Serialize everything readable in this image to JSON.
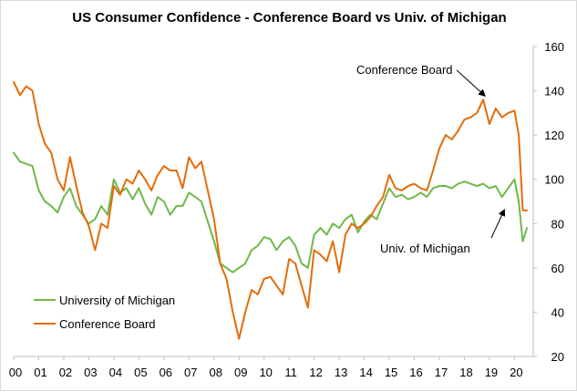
{
  "chart_data": {
    "type": "line",
    "title": "US Consumer Confidence - Conference Board vs Univ. of Michigan",
    "xlabel": "",
    "ylabel": "",
    "ylim": [
      20,
      160
    ],
    "yticks": [
      20,
      40,
      60,
      80,
      100,
      120,
      140,
      160
    ],
    "xlim": [
      2000,
      2020.75
    ],
    "x_tick_labels": [
      "00",
      "01",
      "02",
      "03",
      "04",
      "05",
      "06",
      "07",
      "08",
      "09",
      "10",
      "11",
      "12",
      "13",
      "14",
      "15",
      "16",
      "17",
      "18",
      "19",
      "20"
    ],
    "grid": false,
    "y_axis_position": "right",
    "legend_position": "bottom-left",
    "legend": [
      "University of Michigan",
      "Conference Board"
    ],
    "annotations": [
      {
        "text": "Conference Board",
        "series": "Conference Board",
        "x": 2018.9,
        "y": 136
      },
      {
        "text": "Univ. of Michigan",
        "series": "University of Michigan",
        "x": 2019.6,
        "y": 88
      }
    ],
    "series": [
      {
        "name": "University of Michigan",
        "color": "#70b84a",
        "x": [
          2000.0,
          2000.25,
          2000.5,
          2000.75,
          2001.0,
          2001.25,
          2001.5,
          2001.75,
          2002.0,
          2002.25,
          2002.5,
          2002.75,
          2003.0,
          2003.25,
          2003.5,
          2003.75,
          2004.0,
          2004.25,
          2004.5,
          2004.75,
          2005.0,
          2005.25,
          2005.5,
          2005.75,
          2006.0,
          2006.25,
          2006.5,
          2006.75,
          2007.0,
          2007.25,
          2007.5,
          2007.75,
          2008.0,
          2008.25,
          2008.5,
          2008.75,
          2009.0,
          2009.25,
          2009.5,
          2009.75,
          2010.0,
          2010.25,
          2010.5,
          2010.75,
          2011.0,
          2011.25,
          2011.5,
          2011.75,
          2012.0,
          2012.25,
          2012.5,
          2012.75,
          2013.0,
          2013.25,
          2013.5,
          2013.75,
          2014.0,
          2014.25,
          2014.5,
          2014.75,
          2015.0,
          2015.25,
          2015.5,
          2015.75,
          2016.0,
          2016.25,
          2016.5,
          2016.75,
          2017.0,
          2017.25,
          2017.5,
          2017.75,
          2018.0,
          2018.25,
          2018.5,
          2018.75,
          2019.0,
          2019.25,
          2019.5,
          2019.75,
          2020.0,
          2020.17,
          2020.33,
          2020.5
        ],
        "values": [
          112,
          108,
          107,
          106,
          95,
          90,
          88,
          85,
          92,
          96,
          88,
          84,
          80,
          82,
          88,
          84,
          100,
          94,
          96,
          91,
          96,
          89,
          84,
          92,
          90,
          84,
          88,
          88,
          94,
          92,
          90,
          81,
          72,
          62,
          60,
          58,
          60,
          62,
          68,
          70,
          74,
          73,
          68,
          72,
          74,
          70,
          62,
          60,
          75,
          78,
          75,
          80,
          78,
          82,
          84,
          76,
          81,
          84,
          82,
          89,
          96,
          92,
          93,
          91,
          92,
          94,
          92,
          96,
          97,
          97,
          96,
          98,
          99,
          98,
          97,
          98,
          96,
          97,
          92,
          96,
          100,
          90,
          72,
          78
        ]
      },
      {
        "name": "Conference Board",
        "color": "#e46c0a",
        "x": [
          2000.0,
          2000.25,
          2000.5,
          2000.75,
          2001.0,
          2001.25,
          2001.5,
          2001.75,
          2002.0,
          2002.25,
          2002.5,
          2002.75,
          2003.0,
          2003.25,
          2003.5,
          2003.75,
          2004.0,
          2004.25,
          2004.5,
          2004.75,
          2005.0,
          2005.25,
          2005.5,
          2005.75,
          2006.0,
          2006.25,
          2006.5,
          2006.75,
          2007.0,
          2007.25,
          2007.5,
          2007.75,
          2008.0,
          2008.25,
          2008.5,
          2008.75,
          2009.0,
          2009.25,
          2009.5,
          2009.75,
          2010.0,
          2010.25,
          2010.5,
          2010.75,
          2011.0,
          2011.25,
          2011.5,
          2011.75,
          2012.0,
          2012.25,
          2012.5,
          2012.75,
          2013.0,
          2013.25,
          2013.5,
          2013.75,
          2014.0,
          2014.25,
          2014.5,
          2014.75,
          2015.0,
          2015.25,
          2015.5,
          2015.75,
          2016.0,
          2016.25,
          2016.5,
          2016.75,
          2017.0,
          2017.25,
          2017.5,
          2017.75,
          2018.0,
          2018.25,
          2018.5,
          2018.75,
          2019.0,
          2019.25,
          2019.5,
          2019.75,
          2020.0,
          2020.17,
          2020.33,
          2020.5
        ],
        "values": [
          144,
          138,
          142,
          140,
          125,
          116,
          112,
          100,
          95,
          110,
          97,
          85,
          79,
          68,
          80,
          78,
          97,
          93,
          100,
          98,
          104,
          100,
          95,
          102,
          106,
          104,
          104,
          96,
          110,
          105,
          108,
          95,
          82,
          62,
          55,
          40,
          28,
          40,
          50,
          48,
          55,
          56,
          52,
          48,
          64,
          62,
          52,
          42,
          68,
          66,
          63,
          72,
          58,
          75,
          80,
          78,
          80,
          83,
          88,
          92,
          102,
          96,
          95,
          97,
          98,
          96,
          95,
          104,
          114,
          120,
          118,
          122,
          127,
          128,
          130,
          136,
          125,
          132,
          128,
          130,
          131,
          120,
          86,
          86
        ]
      }
    ]
  }
}
